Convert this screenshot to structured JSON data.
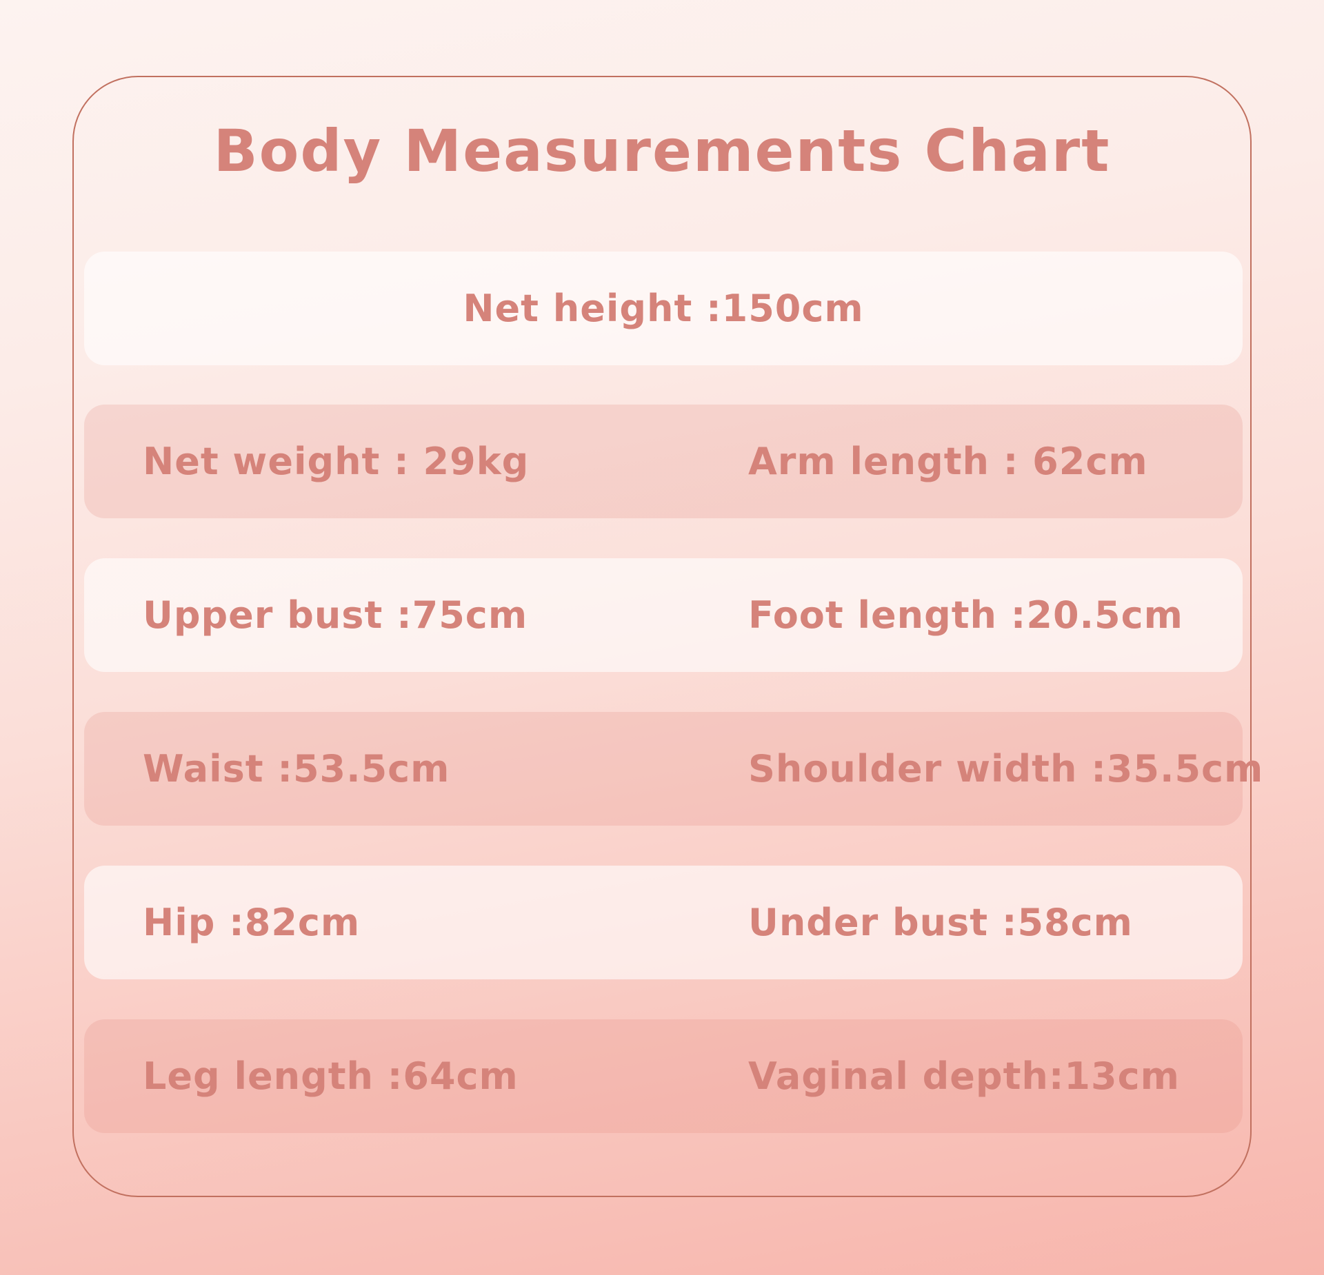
{
  "title": "Body Measurements Chart",
  "colors": {
    "text_accent": "#d5837a",
    "card_border": "#c1705f",
    "background_top": "#fdf3f0",
    "background_bottom": "#f7b5ac",
    "band_light": "rgba(255,255,255,0.60)",
    "band_dark": "rgba(224,130,118,0.20)"
  },
  "rows": [
    {
      "center": "Net height :150cm"
    },
    {
      "left": "Net weight : 29kg",
      "right": "Arm length : 62cm"
    },
    {
      "left": "Upper bust :75cm",
      "right": "Foot length :20.5cm"
    },
    {
      "left": "Waist :53.5cm",
      "right": "Shoulder width :35.5cm"
    },
    {
      "left": "Hip :82cm",
      "right": "Under bust :58cm"
    },
    {
      "left": "Leg length :64cm",
      "right": "Vaginal depth:13cm"
    }
  ]
}
